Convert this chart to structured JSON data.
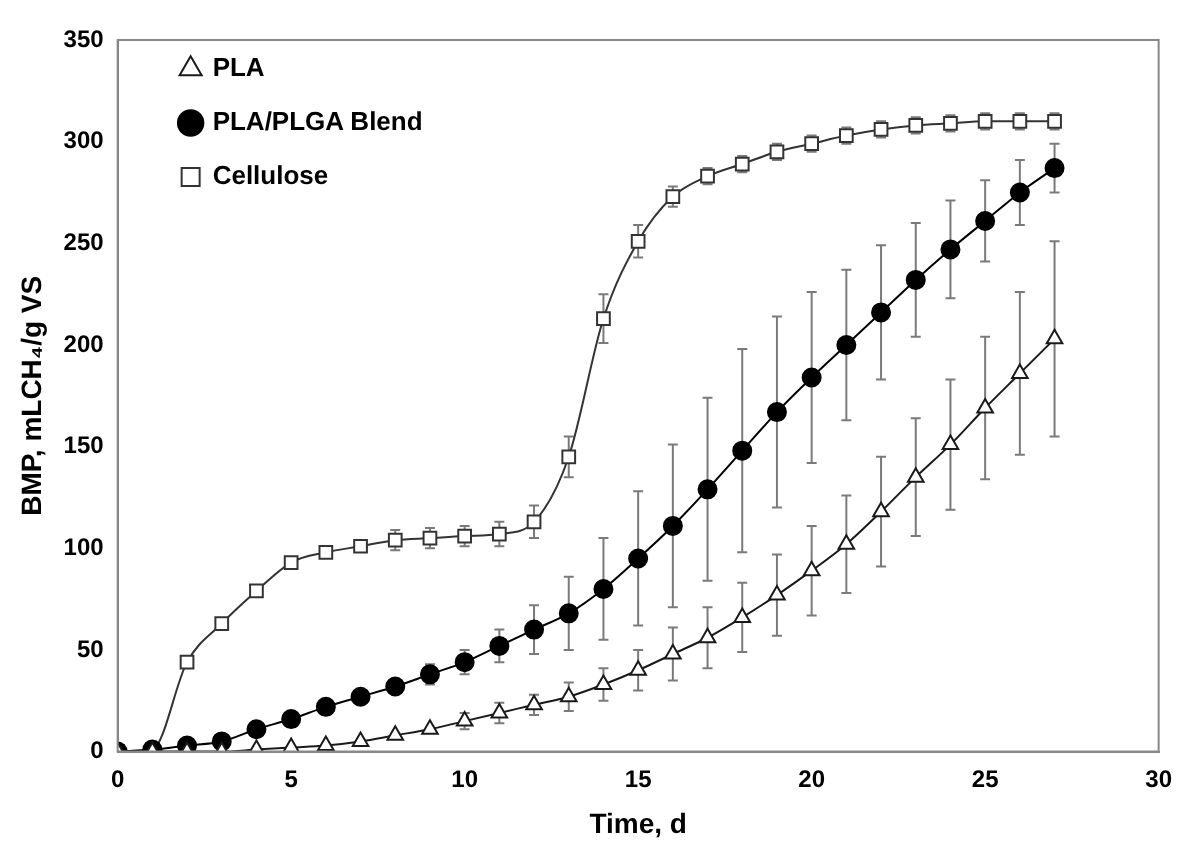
{
  "chart_data": {
    "type": "line",
    "xlabel": "Time, d",
    "ylabel": "BMP, mLCH₄/g VS",
    "xlim": [
      0,
      30
    ],
    "xticks": [
      0,
      5,
      10,
      15,
      20,
      25,
      30
    ],
    "ylim": [
      0,
      350
    ],
    "yticks": [
      0,
      50,
      100,
      150,
      200,
      250,
      300,
      350
    ],
    "grid": false,
    "legend": "top left",
    "line_style": "solid",
    "x": [
      0,
      1,
      2,
      3,
      4,
      5,
      6,
      7,
      8,
      9,
      10,
      11,
      12,
      13,
      14,
      15,
      16,
      17,
      18,
      19,
      20,
      21,
      22,
      23,
      24,
      25,
      26,
      27
    ],
    "series": [
      {
        "name": "PLA",
        "color": "#1a1a1a",
        "marker": "triangle",
        "values": [
          0,
          0,
          0,
          0,
          1,
          2,
          3,
          5,
          8,
          11,
          15,
          19,
          23,
          27,
          33,
          40,
          48,
          56,
          66,
          77,
          89,
          102,
          118,
          135,
          151,
          169,
          186,
          203
        ],
        "errors": [
          null,
          null,
          null,
          null,
          null,
          null,
          null,
          null,
          null,
          null,
          4,
          5,
          5,
          7,
          8,
          10,
          13,
          15,
          17,
          20,
          22,
          24,
          27,
          29,
          32,
          35,
          40,
          48
        ]
      },
      {
        "name": "PLA/PLGA Blend",
        "color": "#000000",
        "marker": "circle",
        "values": [
          0,
          1,
          3,
          5,
          11,
          16,
          22,
          27,
          32,
          38,
          44,
          52,
          60,
          68,
          80,
          95,
          111,
          129,
          148,
          167,
          184,
          200,
          216,
          232,
          247,
          261,
          275,
          287
        ],
        "errors": [
          null,
          null,
          null,
          null,
          null,
          null,
          null,
          null,
          null,
          5,
          6,
          8,
          12,
          18,
          25,
          33,
          40,
          45,
          50,
          47,
          42,
          37,
          33,
          28,
          24,
          20,
          16,
          12
        ]
      },
      {
        "name": "Cellulose",
        "color": "#333333",
        "marker": "square",
        "values": [
          0,
          1,
          44,
          63,
          79,
          93,
          98,
          101,
          104,
          105,
          106,
          107,
          113,
          145,
          213,
          251,
          273,
          283,
          289,
          295,
          299,
          303,
          306,
          308,
          309,
          310,
          310,
          310
        ],
        "errors": [
          null,
          null,
          null,
          null,
          null,
          null,
          null,
          null,
          5,
          5,
          5,
          6,
          8,
          10,
          12,
          8,
          5,
          4,
          4,
          4,
          4,
          4,
          4,
          4,
          4,
          4,
          4,
          4
        ]
      }
    ]
  }
}
